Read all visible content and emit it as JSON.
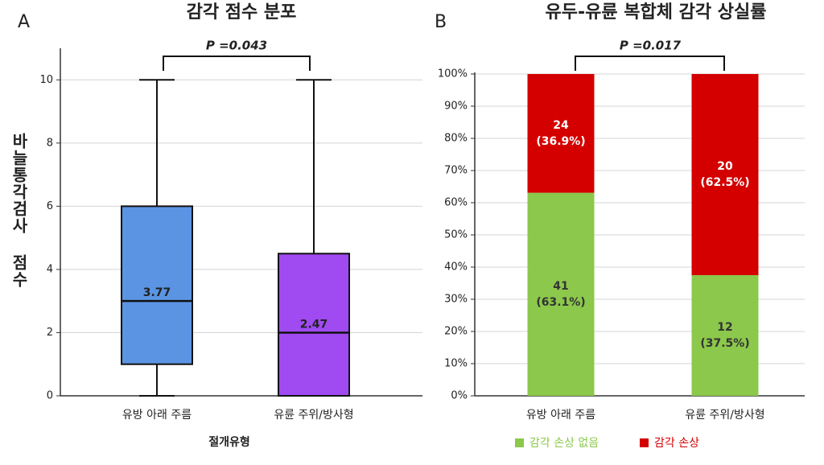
{
  "chart_data": [
    {
      "type": "box",
      "panel": "A",
      "title": "감각 점수 분포",
      "ylabel": "바늘통각검사 점수",
      "xlabel": "절개유형",
      "annotation": "P =0.043",
      "categories": [
        "유방 아래 주름",
        "유륜 주위/방사형"
      ],
      "boxes": [
        {
          "min": 0,
          "q1": 1,
          "median": 3,
          "q3": 6,
          "max": 10,
          "mean": 3.77,
          "color": "#5b94e3"
        },
        {
          "min": 0,
          "q1": 0,
          "median": 2,
          "q3": 4.5,
          "max": 10,
          "mean": 2.47,
          "color": "#a04af2"
        }
      ],
      "ylim": [
        0,
        11
      ],
      "yticks": [
        0,
        2,
        4,
        6,
        8,
        10
      ],
      "grid": true
    },
    {
      "type": "stacked_bar",
      "panel": "B",
      "title": "유두-유륜 복합체 감각 상실률",
      "annotation": "P =0.017",
      "categories": [
        "유방 아래 주름",
        "유륜 주위/방사형"
      ],
      "series": [
        {
          "name": "감각 손상 없음",
          "color": "#8cc84b",
          "values": [
            63.1,
            37.5
          ],
          "counts": [
            41,
            12
          ],
          "value_labels": [
            "(63.1%)",
            "(37.5%)"
          ]
        },
        {
          "name": "감각 손상",
          "color": "#d40000",
          "values": [
            36.9,
            62.5
          ],
          "counts": [
            24,
            20
          ],
          "value_labels": [
            "(36.9%)",
            "(62.5%)"
          ]
        }
      ],
      "ylim": [
        0,
        100
      ],
      "yticks": [
        {
          "value": 0,
          "label": "0%"
        },
        {
          "value": 10,
          "label": "10%"
        },
        {
          "value": 20,
          "label": "20%"
        },
        {
          "value": 30,
          "label": "30%"
        },
        {
          "value": 40,
          "label": "40%"
        },
        {
          "value": 50,
          "label": "50%"
        },
        {
          "value": 60,
          "label": "60%"
        },
        {
          "value": 70,
          "label": "70%"
        },
        {
          "value": 80,
          "label": "80%"
        },
        {
          "value": 90,
          "label": "90%"
        },
        {
          "value": 100,
          "label": "100%"
        }
      ],
      "grid": true,
      "legend": "bottom"
    }
  ]
}
